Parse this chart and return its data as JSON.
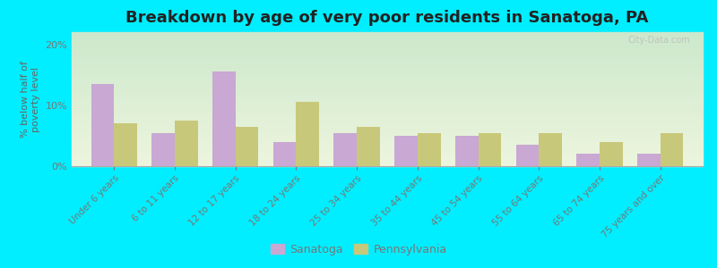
{
  "title": "Breakdown by age of very poor residents in Sanatoga, PA",
  "ylabel": "% below half of\npoverty level",
  "categories": [
    "Under 6 years",
    "6 to 11 years",
    "12 to 17 years",
    "18 to 24 years",
    "25 to 34 years",
    "35 to 44 years",
    "45 to 54 years",
    "55 to 64 years",
    "65 to 74 years",
    "75 years and over"
  ],
  "sanatoga": [
    13.5,
    5.5,
    15.5,
    4.0,
    5.5,
    5.0,
    5.0,
    3.5,
    2.0,
    2.0
  ],
  "pennsylvania": [
    7.0,
    7.5,
    6.5,
    10.5,
    6.5,
    5.5,
    5.5,
    5.5,
    4.0,
    5.5
  ],
  "sanatoga_color": "#c9a8d4",
  "pennsylvania_color": "#c8c87a",
  "background_outer": "#00eeff",
  "background_plot_top": "#cde8cd",
  "background_plot_bottom": "#eef5e0",
  "title_color": "#222222",
  "ylabel_color": "#666666",
  "tick_color": "#777777",
  "ylim": [
    0,
    22
  ],
  "yticks": [
    0,
    10,
    20
  ],
  "ytick_labels": [
    "0%",
    "10%",
    "20%"
  ],
  "bar_width": 0.38,
  "legend_sanatoga": "Sanatoga",
  "legend_pennsylvania": "Pennsylvania",
  "watermark": "City-Data.com"
}
